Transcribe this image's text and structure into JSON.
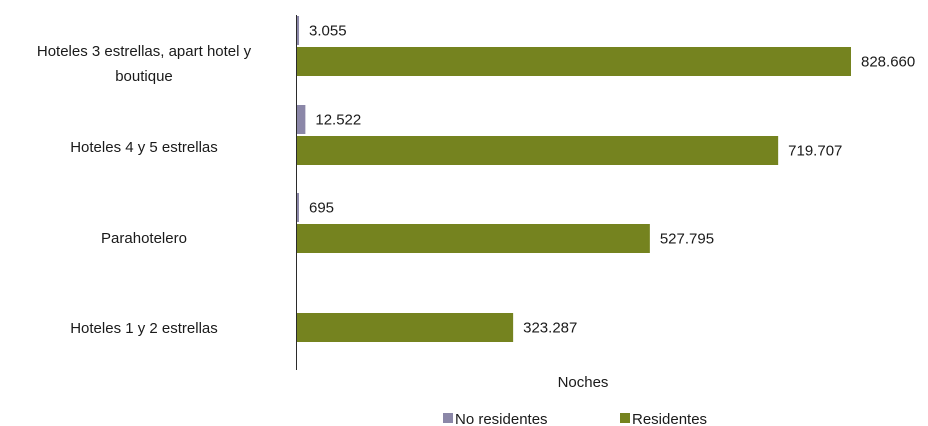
{
  "chart_data": {
    "type": "bar",
    "orientation": "horizontal",
    "categories": [
      [
        "Hoteles 3 estrellas, apart hotel y",
        "boutique"
      ],
      [
        "Hoteles 4 y 5 estrellas"
      ],
      [
        "Parahotelero"
      ],
      [
        "Hoteles 1 y 2 estrellas"
      ]
    ],
    "series": [
      {
        "name": "No residentes",
        "color": "#8B87A8",
        "values": [
          3055,
          12522,
          695,
          null
        ],
        "labels": [
          "3.055",
          "12.522",
          "695",
          ""
        ]
      },
      {
        "name": "Residentes",
        "color": "#75831F",
        "values": [
          828660,
          719707,
          527795,
          323287
        ],
        "labels": [
          "828.660",
          "719.707",
          "527.795",
          "323.287"
        ]
      }
    ],
    "xlabel": "Noches",
    "xlim": [
      0,
      850000
    ],
    "grid": false,
    "legend_position": "bottom"
  }
}
